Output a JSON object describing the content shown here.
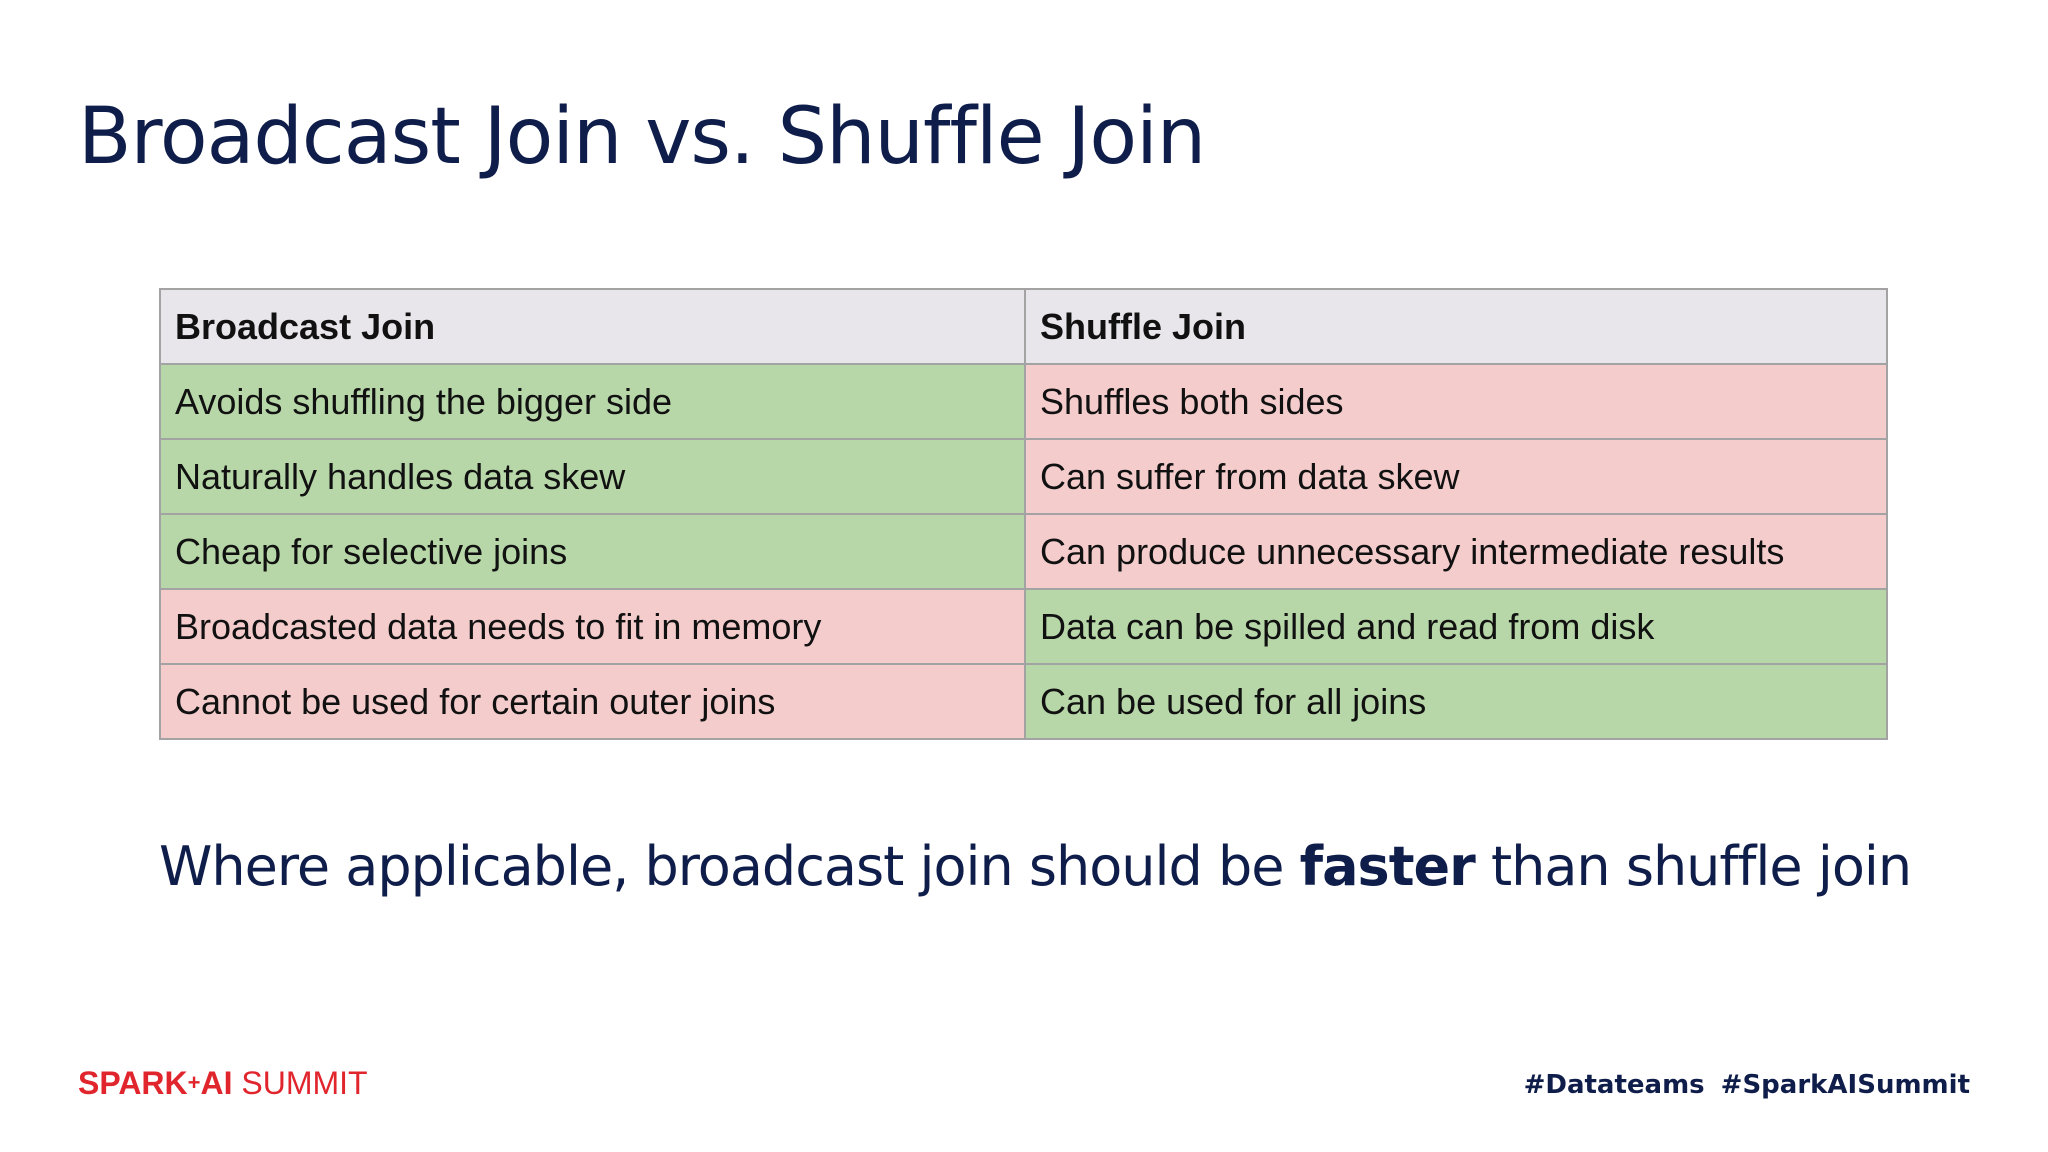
{
  "slide": {
    "title": "Broadcast Join vs. Shuffle Join",
    "table": {
      "headers": [
        "Broadcast Join",
        "Shuffle Join"
      ],
      "rows": [
        [
          "Avoids shuffling the bigger side",
          "Shuffles both sides"
        ],
        [
          "Naturally handles data skew",
          "Can suffer from data skew"
        ],
        [
          "Cheap for selective joins",
          "Can produce unnecessary intermediate results"
        ],
        [
          "Broadcasted data needs to fit in memory",
          "Data can be spilled and read from disk"
        ],
        [
          "Cannot be used for certain outer joins",
          "Can be used for all joins"
        ]
      ]
    },
    "summary": {
      "before": "Where applicable, broadcast join should be ",
      "emphasis": "faster",
      "after": " than shuffle join"
    },
    "footer": {
      "logo_brand": "SPARK",
      "logo_plus": "+",
      "logo_ai": "AI",
      "logo_summit": " SUMMIT",
      "hashtags": [
        "#Datateams",
        "#SparkAISummit"
      ]
    },
    "colors": {
      "title": "#0f1d4a",
      "header_bg": "#e8e6ea",
      "advantage_bg": "#b7d7a8",
      "disadvantage_bg": "#f4cccc",
      "logo_red": "#e0252d"
    }
  }
}
